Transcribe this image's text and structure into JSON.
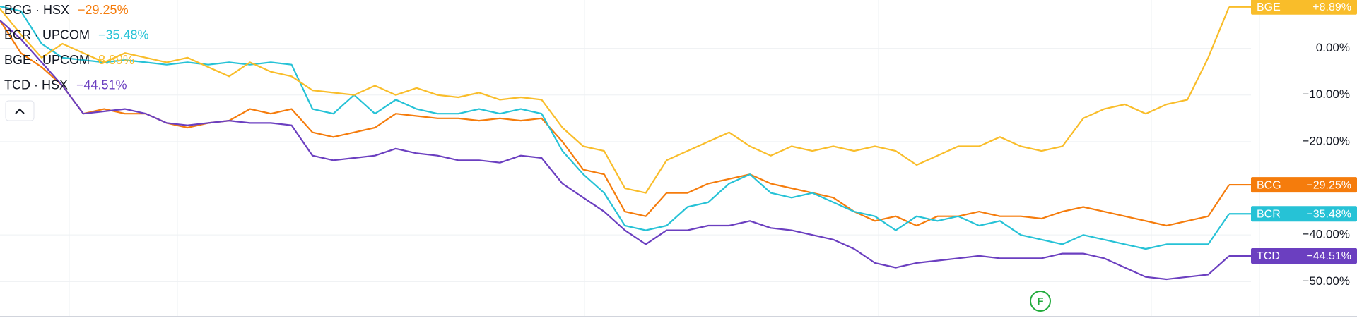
{
  "chart_data": {
    "type": "line",
    "ylim": [
      -56.3,
      10.37
    ],
    "yticks": [
      {
        "value": 0,
        "label": "0.00%"
      },
      {
        "value": -10,
        "label": "−10.00%"
      },
      {
        "value": -20,
        "label": "−20.00%"
      },
      {
        "value": -40,
        "label": "−40.00%"
      },
      {
        "value": -50,
        "label": "−50.00%"
      }
    ],
    "grid": true,
    "legend": "top-left",
    "marker": "F",
    "series": [
      {
        "legend_name": "BCG · HSX",
        "name": "BCG",
        "color": "#f57c0c",
        "change": -29.25,
        "change_label": "−29.25%",
        "values": [
          6,
          -1,
          -4,
          -8,
          -14,
          -13,
          -14,
          -14,
          -16,
          -17,
          -16,
          -15.5,
          -13,
          -14,
          -13,
          -18,
          -19,
          -18,
          -17,
          -14,
          -14.5,
          -15,
          -15,
          -15.5,
          -15,
          -15.5,
          -15,
          -20,
          -26,
          -27,
          -35,
          -36,
          -31,
          -31,
          -29,
          -28,
          -27,
          -29,
          -30,
          -31,
          -32,
          -35,
          -37,
          -36,
          -38,
          -36,
          -36,
          -35,
          -36,
          -36,
          -36.5,
          -35,
          -34,
          -35,
          -36,
          -37,
          -38,
          -37,
          -36,
          -29.25
        ]
      },
      {
        "legend_name": "BCR · UPCOM",
        "name": "BCR",
        "color": "#26c2d6",
        "change": -35.48,
        "change_label": "−35.48%",
        "values": [
          9,
          8,
          1,
          -2,
          -2.5,
          -3,
          -2.5,
          -3,
          -3.5,
          -3,
          -3.5,
          -3,
          -3.5,
          -3,
          -3.5,
          -13,
          -14,
          -10,
          -14,
          -11,
          -13,
          -14,
          -14,
          -13,
          -14,
          -13,
          -14,
          -22,
          -27,
          -31,
          -38,
          -39,
          -38,
          -34,
          -33,
          -29,
          -27,
          -31,
          -32,
          -31,
          -33,
          -35,
          -36,
          -39,
          -36,
          -37,
          -36,
          -38,
          -37,
          -40,
          -41,
          -42,
          -40,
          -41,
          -42,
          -43,
          -42,
          -42,
          -42,
          -35.48
        ]
      },
      {
        "legend_name": "BGE · UPCOM",
        "name": "BGE",
        "color": "#f9bd2a",
        "change": 8.89,
        "change_label": "+8.89%",
        "legend_label": "8.89%",
        "values": [
          8.5,
          3,
          -2,
          1,
          -1,
          -3,
          -1,
          -2,
          -3,
          -2,
          -4,
          -6,
          -3,
          -5,
          -6,
          -9,
          -9.5,
          -10,
          -8,
          -10,
          -8.5,
          -10,
          -10.5,
          -9.5,
          -11,
          -10.5,
          -11,
          -17,
          -21,
          -22,
          -30,
          -31,
          -24,
          -22,
          -20,
          -18,
          -21,
          -23,
          -21,
          -22,
          -21,
          -22,
          -21,
          -22,
          -25,
          -23,
          -21,
          -21,
          -19,
          -21,
          -22,
          -21,
          -15,
          -13,
          -12,
          -14,
          -12,
          -11,
          -2,
          8.89
        ]
      },
      {
        "legend_name": "TCD · HSX",
        "name": "TCD",
        "color": "#6b3fc0",
        "change": -44.51,
        "change_label": "−44.51%",
        "values": [
          6,
          2,
          -3,
          -8,
          -14,
          -13.5,
          -13,
          -14,
          -16,
          -16.5,
          -16,
          -15.5,
          -16,
          -16,
          -16.5,
          -23,
          -24,
          -23.5,
          -23,
          -21.5,
          -22.5,
          -23,
          -24,
          -24,
          -24.5,
          -23,
          -23.5,
          -29,
          -32,
          -35,
          -39,
          -42,
          -39,
          -39,
          -38,
          -38,
          -37,
          -38.5,
          -39,
          -40,
          -41,
          -43,
          -46,
          -47,
          -46,
          -45.5,
          -45,
          -44.5,
          -45,
          -45,
          -45,
          -44,
          -44,
          -45,
          -47,
          -49,
          -49.5,
          -49,
          -48.5,
          -44.51
        ]
      }
    ]
  }
}
